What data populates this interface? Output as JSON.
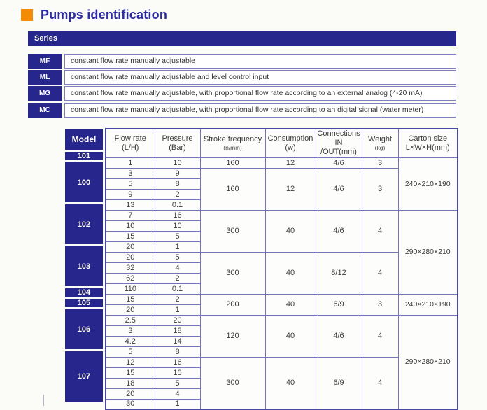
{
  "page": {
    "title": "Pumps identification",
    "series_header": "Series"
  },
  "colors": {
    "navy": "#26268c",
    "orange_accent": "#f28c05",
    "grid_line": "#7474b8",
    "outer_border": "#4949a3"
  },
  "series": [
    {
      "code": "MF",
      "description": "constant flow rate manually adjustable"
    },
    {
      "code": "ML",
      "description": "constant flow rate manually adjustable and level control input"
    },
    {
      "code": "MG",
      "description": "constant flow rate manually adjustable, with proportional flow rate according to an external analog (4-20 mA)"
    },
    {
      "code": "MC",
      "description": "constant flow rate manually adjustable, with proportional flow rate according to an digital signal (water meter)"
    }
  ],
  "table": {
    "headers": [
      {
        "label": "Model",
        "sub": ""
      },
      {
        "label": "Flow rate",
        "sub": "(L/H)"
      },
      {
        "label": "Pressure",
        "sub": "(Bar)"
      },
      {
        "label": "Stroke frequency",
        "sub": "(n/min)",
        "sub_small": true
      },
      {
        "label": "Consumption",
        "sub": "(w)"
      },
      {
        "label": "Connections",
        "sub": "IN /OUT(mm)"
      },
      {
        "label": "Weight",
        "sub": "(kg)",
        "sub_small": true
      },
      {
        "label": "Carton size",
        "sub": "L×W×H(mm)"
      }
    ],
    "groups": [
      {
        "model": "101",
        "rows": [
          [
            "1",
            "10"
          ]
        ]
      },
      {
        "model": "100",
        "rows": [
          [
            "3",
            "9"
          ],
          [
            "5",
            "8"
          ],
          [
            "9",
            "2"
          ],
          [
            "13",
            "0.1"
          ]
        ]
      },
      {
        "model": "102",
        "rows": [
          [
            "7",
            "16"
          ],
          [
            "10",
            "10"
          ],
          [
            "15",
            "5"
          ],
          [
            "20",
            "1"
          ]
        ]
      },
      {
        "model": "103",
        "rows": [
          [
            "20",
            "5"
          ],
          [
            "32",
            "4"
          ],
          [
            "62",
            "2"
          ],
          [
            "110",
            "0.1"
          ]
        ]
      },
      {
        "model": "104",
        "rows": [
          [
            "15",
            "2"
          ]
        ]
      },
      {
        "model": "105",
        "rows": [
          [
            "20",
            "1"
          ]
        ]
      },
      {
        "model": "106",
        "rows": [
          [
            "2.5",
            "20"
          ],
          [
            "3",
            "18"
          ],
          [
            "4.2",
            "14"
          ],
          [
            "5",
            "8"
          ]
        ]
      },
      {
        "model": "107",
        "rows": [
          [
            "12",
            "16"
          ],
          [
            "15",
            "10"
          ],
          [
            "18",
            "5"
          ],
          [
            "20",
            "4"
          ],
          [
            "30",
            "1"
          ]
        ]
      }
    ],
    "spec_groups": [
      {
        "models": [
          "101"
        ],
        "stroke": "160",
        "consumption": "12",
        "connections": "4/6",
        "weight": "3"
      },
      {
        "models": [
          "100"
        ],
        "stroke": "160",
        "consumption": "12",
        "connections": "4/6",
        "weight": "3"
      },
      {
        "models": [
          "102"
        ],
        "stroke": "300",
        "consumption": "40",
        "connections": "4/6",
        "weight": "4"
      },
      {
        "models": [
          "103"
        ],
        "stroke": "300",
        "consumption": "40",
        "connections": "8/12",
        "weight": "4"
      },
      {
        "models": [
          "104",
          "105"
        ],
        "stroke": "200",
        "consumption": "40",
        "connections": "6/9",
        "weight": "3"
      },
      {
        "models": [
          "106"
        ],
        "stroke": "120",
        "consumption": "40",
        "connections": "4/6",
        "weight": "4"
      },
      {
        "models": [
          "107"
        ],
        "stroke": "300",
        "consumption": "40",
        "connections": "6/9",
        "weight": "4"
      }
    ],
    "carton_groups": [
      {
        "models": [
          "101",
          "100"
        ],
        "size": "240×210×190"
      },
      {
        "models": [
          "102",
          "103"
        ],
        "size": "290×280×210"
      },
      {
        "models": [
          "104",
          "105"
        ],
        "size": "240×210×190"
      },
      {
        "models": [
          "106",
          "107"
        ],
        "size": "290×280×210"
      }
    ]
  }
}
